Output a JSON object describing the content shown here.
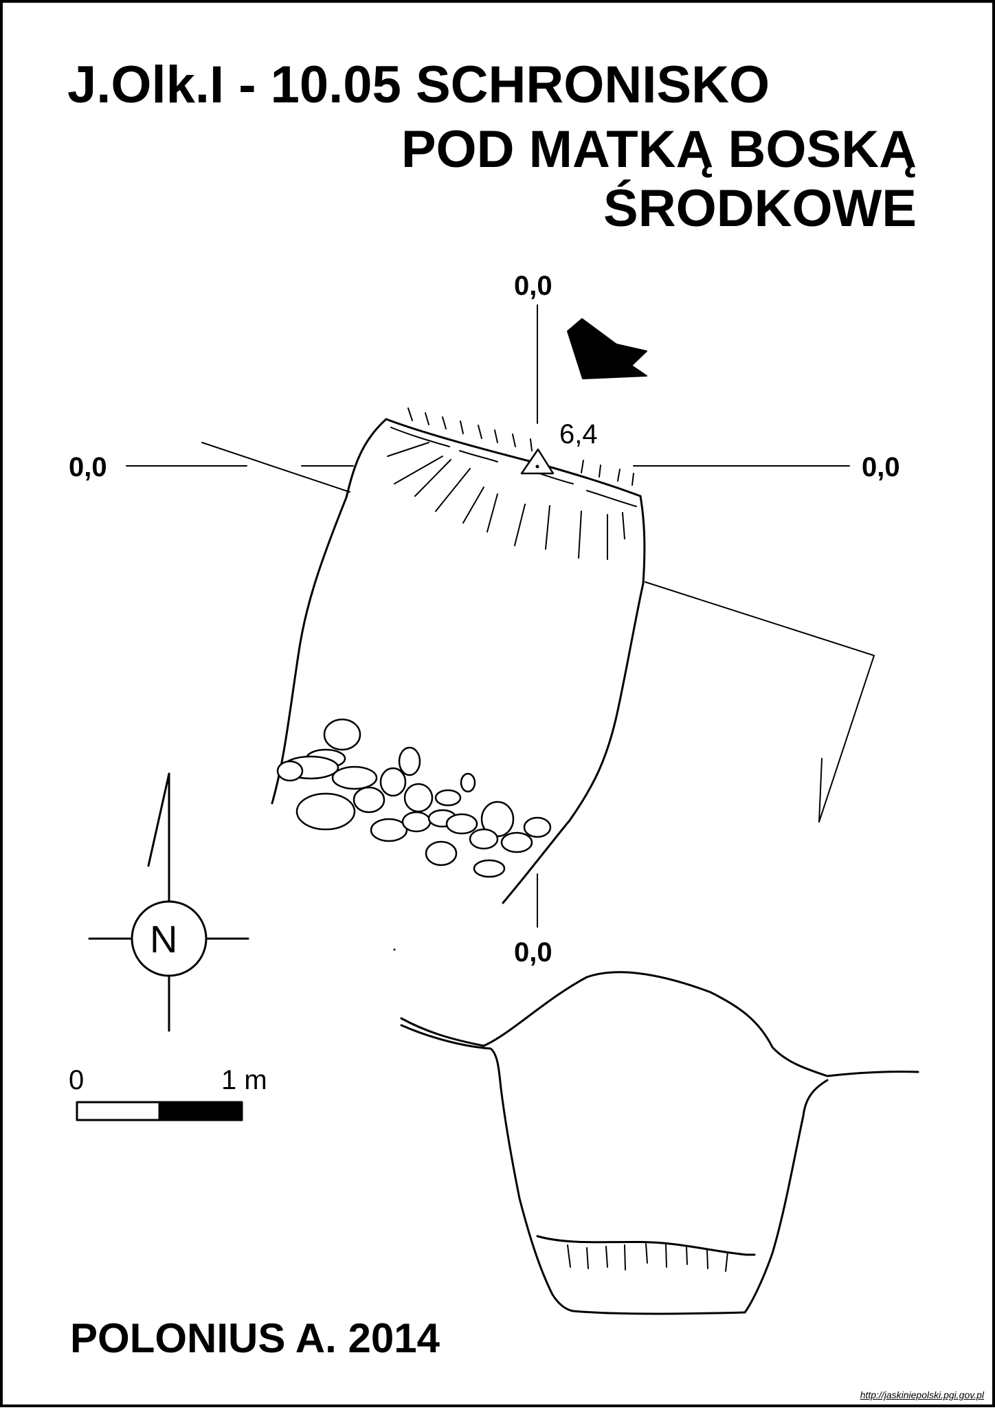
{
  "title": {
    "line1": "J.Olk.I - 10.05  SCHRONISKO",
    "line2": "POD MATKĄ BOSKĄ",
    "line3": "ŚRODKOWE"
  },
  "plan": {
    "coord_top": "0,0",
    "coord_left": "0,0",
    "coord_right": "0,0",
    "coord_bottom": "0,0",
    "datum_height": "6,4"
  },
  "north_arrow": {
    "label": "N"
  },
  "scale_bar": {
    "start_label": "0",
    "end_label": "1 m"
  },
  "author": "POLONIUS A. 2014",
  "source_url": "http://jaskiniepolski.pgi.gov.pl",
  "colors": {
    "ink": "#000000",
    "paper": "#ffffff"
  }
}
